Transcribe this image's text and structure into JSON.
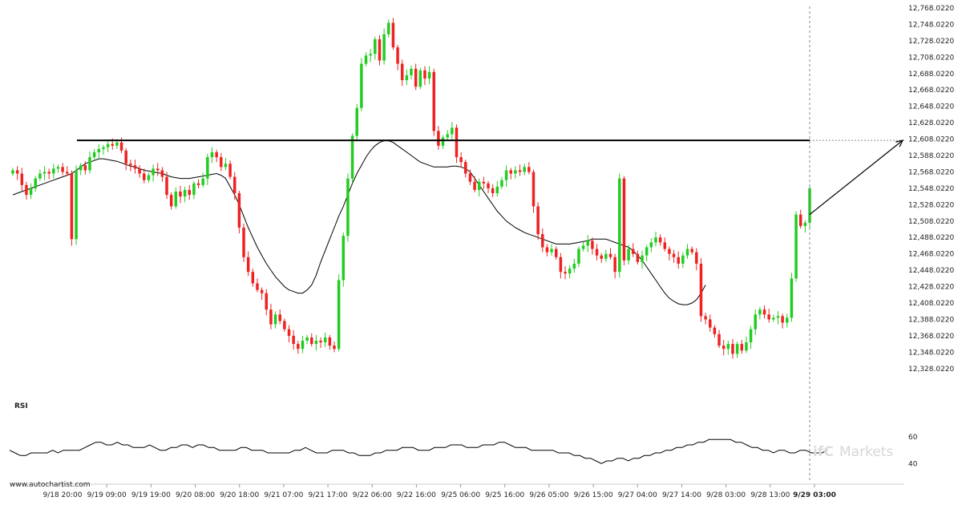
{
  "source_label": "www.autochartist.com",
  "watermark": {
    "part_a": "ifC",
    "part_b": "Markets"
  },
  "rsi_panel": {
    "label": "RSI"
  },
  "chart_data": [
    {
      "type": "candlestick",
      "y_ticks": [
        12768.02,
        12748.02,
        12728.02,
        12708.02,
        12688.02,
        12668.02,
        12648.02,
        12628.02,
        12608.02,
        12588.02,
        12568.02,
        12548.02,
        12528.02,
        12508.02,
        12488.02,
        12468.02,
        12448.02,
        12428.02,
        12408.02,
        12388.02,
        12368.02,
        12348.02,
        12328.02
      ],
      "y_tick_labels": [
        "12,768.0220",
        "12,748.0220",
        "12,728.0220",
        "12,708.0220",
        "12,688.0220",
        "12,668.0220",
        "12,648.0220",
        "12,628.0220",
        "12,608.0220",
        "12,588.0220",
        "12,568.0220",
        "12,548.0220",
        "12,528.0220",
        "12,508.0220",
        "12,488.0220",
        "12,468.0220",
        "12,448.0220",
        "12,428.0220",
        "12,408.0220",
        "12,388.0220",
        "12,368.0220",
        "12,348.0220",
        "12,328.0220"
      ],
      "ylim": [
        12318,
        12770
      ],
      "x_tick_labels": [
        "9/18 20:00",
        "9/19 09:00",
        "9/19 19:00",
        "9/20 08:00",
        "9/20 18:00",
        "9/21 07:00",
        "9/21 17:00",
        "9/22 06:00",
        "9/22 16:00",
        "9/25 06:00",
        "9/25 16:00",
        "9/26 05:00",
        "9/26 15:00",
        "9/27 04:00",
        "9/27 14:00",
        "9/28 03:00",
        "9/28 13:00",
        "9/29 03:00"
      ],
      "highlight_x_label": "9/29 03:00",
      "resistance_level": 12606.5,
      "projection": {
        "from": 12516,
        "to": 12606.5
      },
      "colors": {
        "up": "#22cc22",
        "down": "#ee2222",
        "line": "#000000",
        "grid": "#cccccc"
      },
      "close": [
        12570,
        12566,
        12552,
        12540,
        12548,
        12560,
        12566,
        12568,
        12566,
        12572,
        12574,
        12568,
        12566,
        12486,
        12570,
        12576,
        12570,
        12586,
        12592,
        12596,
        12598,
        12602,
        12600,
        12604,
        12594,
        12578,
        12576,
        12572,
        12566,
        12558,
        12564,
        12572,
        12570,
        12562,
        12540,
        12526,
        12544,
        12538,
        12546,
        12540,
        12554,
        12552,
        12560,
        12586,
        12592,
        12586,
        12574,
        12578,
        12562,
        12542,
        12500,
        12464,
        12446,
        12432,
        12424,
        12420,
        12400,
        12382,
        12394,
        12386,
        12376,
        12368,
        12358,
        12352,
        12362,
        12366,
        12358,
        12362,
        12360,
        12366,
        12356,
        12352,
        12436,
        12490,
        12560,
        12612,
        12646,
        12700,
        12710,
        12712,
        12730,
        12704,
        12736,
        12750,
        12720,
        12700,
        12680,
        12686,
        12694,
        12672,
        12692,
        12682,
        12690,
        12618,
        12600,
        12610,
        12614,
        12622,
        12586,
        12580,
        12566,
        12556,
        12546,
        12556,
        12554,
        12548,
        12542,
        12550,
        12558,
        12570,
        12566,
        12570,
        12568,
        12574,
        12568,
        12526,
        12492,
        12476,
        12470,
        12474,
        12464,
        12446,
        12444,
        12450,
        12456,
        12474,
        12478,
        12484,
        12474,
        12466,
        12462,
        12468,
        12464,
        12446,
        12560,
        12460,
        12474,
        12468,
        12458,
        12466,
        12476,
        12482,
        12488,
        12482,
        12474,
        12468,
        12464,
        12456,
        12466,
        12474,
        12470,
        12456,
        12392,
        12388,
        12378,
        12370,
        12356,
        12352,
        12358,
        12346,
        12358,
        12350,
        12360,
        12376,
        12394,
        12400,
        12394,
        12388,
        12390,
        12392,
        12384,
        12390,
        12438,
        12516,
        12502,
        12506,
        12548
      ]
    },
    {
      "type": "line",
      "series_type": "moving_average",
      "values": [
        12540,
        12542,
        12544,
        12546,
        12548,
        12550,
        12552,
        12554,
        12556,
        12558,
        12560,
        12562,
        12564,
        12566,
        12570,
        12574,
        12578,
        12580,
        12582,
        12584,
        12584,
        12583,
        12582,
        12581,
        12579,
        12577,
        12575,
        12574,
        12572,
        12570,
        12569,
        12568,
        12567,
        12566,
        12564,
        12562,
        12561,
        12560,
        12560,
        12560,
        12561,
        12562,
        12563,
        12564,
        12565,
        12566,
        12564,
        12560,
        12550,
        12540,
        12528,
        12514,
        12500,
        12488,
        12476,
        12466,
        12456,
        12448,
        12440,
        12434,
        12428,
        12424,
        12422,
        12420,
        12420,
        12424,
        12430,
        12442,
        12458,
        12472,
        12486,
        12500,
        12514,
        12526,
        12540,
        12554,
        12566,
        12576,
        12586,
        12594,
        12600,
        12604,
        12606,
        12606,
        12604,
        12600,
        12596,
        12592,
        12588,
        12584,
        12580,
        12578,
        12576,
        12574,
        12574,
        12574,
        12574,
        12575,
        12575,
        12574,
        12572,
        12568,
        12560,
        12552,
        12544,
        12536,
        12528,
        12520,
        12514,
        12508,
        12504,
        12500,
        12497,
        12494,
        12492,
        12490,
        12488,
        12486,
        12484,
        12482,
        12480,
        12480,
        12480,
        12480,
        12481,
        12482,
        12483,
        12484,
        12486,
        12486,
        12486,
        12486,
        12484,
        12482,
        12480,
        12478,
        12476,
        12472,
        12466,
        12460,
        12452,
        12444,
        12436,
        12428,
        12420,
        12414,
        12410,
        12407,
        12406,
        12406,
        12408,
        12412,
        12420,
        12430
      ]
    },
    {
      "type": "line",
      "series_type": "rsi",
      "y_ticks": [
        40,
        60
      ],
      "y_tick_labels": [
        "40",
        "60"
      ],
      "ylim": [
        36,
        72
      ],
      "values": [
        50,
        48,
        46,
        46,
        48,
        48,
        48,
        48,
        50,
        48,
        50,
        50,
        50,
        50,
        52,
        54,
        56,
        56,
        54,
        54,
        56,
        54,
        54,
        52,
        52,
        52,
        54,
        52,
        50,
        50,
        52,
        52,
        54,
        54,
        52,
        54,
        54,
        52,
        52,
        50,
        50,
        50,
        50,
        52,
        52,
        50,
        50,
        50,
        48,
        48,
        48,
        48,
        48,
        50,
        50,
        52,
        50,
        48,
        48,
        48,
        50,
        50,
        50,
        48,
        48,
        46,
        46,
        46,
        48,
        48,
        50,
        50,
        50,
        52,
        52,
        52,
        50,
        50,
        50,
        52,
        52,
        52,
        54,
        54,
        54,
        52,
        52,
        52,
        54,
        54,
        54,
        56,
        56,
        54,
        52,
        52,
        52,
        50,
        50,
        50,
        50,
        50,
        48,
        48,
        48,
        46,
        46,
        44,
        44,
        42,
        40,
        42,
        42,
        44,
        44,
        42,
        44,
        44,
        46,
        46,
        48,
        48,
        50,
        50,
        52,
        52,
        54,
        54,
        56,
        56,
        58,
        58,
        58,
        58,
        58,
        56,
        56,
        54,
        52,
        52,
        50,
        50,
        48,
        50,
        50,
        48,
        48,
        50,
        50,
        48,
        48,
        48,
        50
      ]
    }
  ]
}
